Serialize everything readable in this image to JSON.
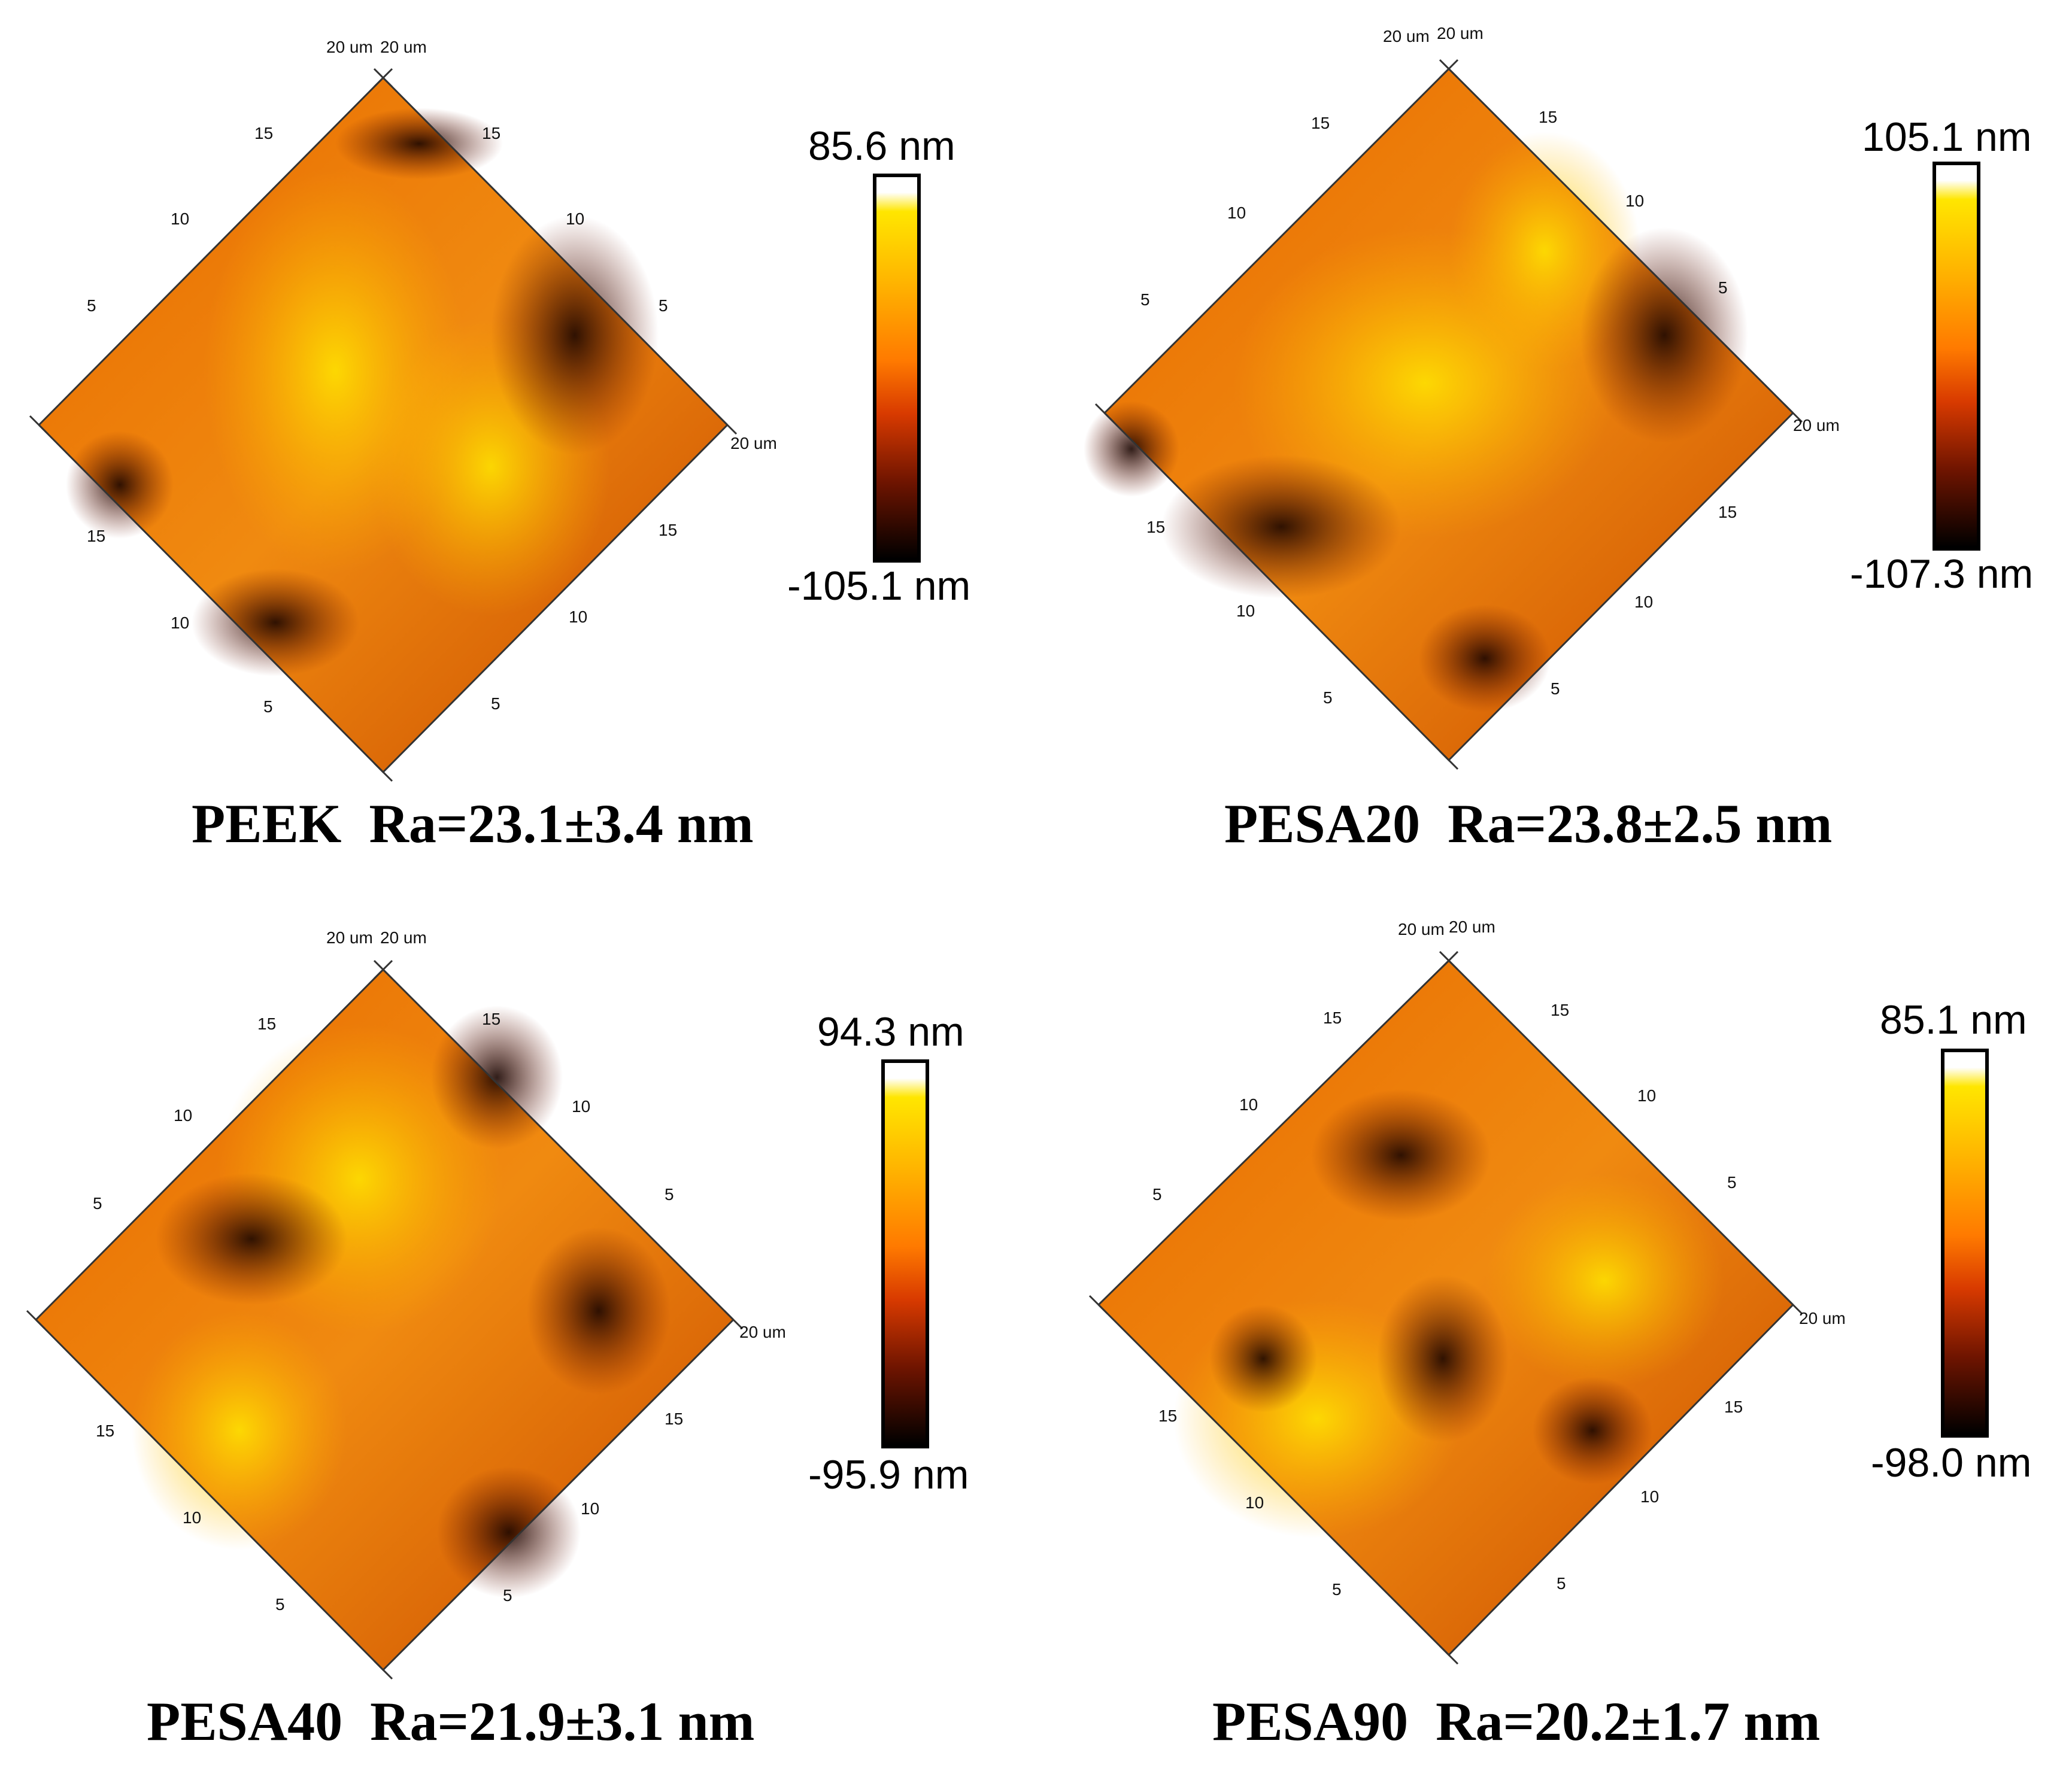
{
  "colors": {
    "high": "#ffe600",
    "mid": "#ff7a00",
    "low": "#000000",
    "background": "#ffffff"
  },
  "panels": [
    {
      "sample": "PEEK",
      "ra": "Ra=23.1±3.4 nm",
      "scale_max": "85.6 nm",
      "scale_min": "-105.1 nm",
      "axis_unit": "20 um",
      "ticks": [
        "5",
        "10",
        "15"
      ]
    },
    {
      "sample": "PESA20",
      "ra": "Ra=23.8±2.5 nm",
      "scale_max": "105.1 nm",
      "scale_min": "-107.3 nm",
      "axis_unit": "20 um",
      "ticks": [
        "5",
        "10",
        "15"
      ]
    },
    {
      "sample": "PESA40",
      "ra": "Ra=21.9±3.1 nm",
      "scale_max": "94.3 nm",
      "scale_min": "-95.9 nm",
      "axis_unit": "20 um",
      "ticks": [
        "5",
        "10",
        "15"
      ]
    },
    {
      "sample": "PESA90",
      "ra": "Ra=20.2±1.7 nm",
      "scale_max": "85.1 nm",
      "scale_min": "-98.0 nm",
      "axis_unit": "20 um",
      "ticks": [
        "5",
        "10",
        "15"
      ]
    }
  ]
}
